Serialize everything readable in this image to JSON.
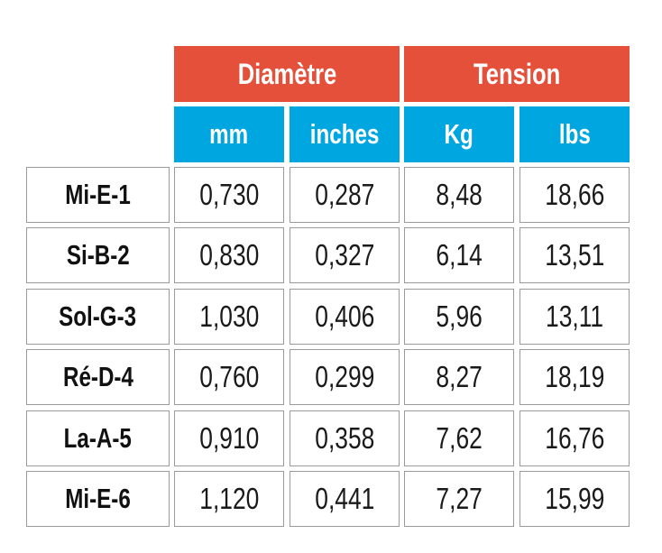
{
  "table": {
    "group_headers": [
      "Diamètre",
      "Tension"
    ],
    "sub_headers": [
      "mm",
      "inches",
      "Kg",
      "lbs"
    ],
    "rows": [
      {
        "label": "Mi-E-1",
        "values": [
          "0,730",
          "0,287",
          "8,48",
          "18,66"
        ]
      },
      {
        "label": "Si-B-2",
        "values": [
          "0,830",
          "0,327",
          "6,14",
          "13,51"
        ]
      },
      {
        "label": "Sol-G-3",
        "values": [
          "1,030",
          "0,406",
          "5,96",
          "13,11"
        ]
      },
      {
        "label": "Ré-D-4",
        "values": [
          "0,760",
          "0,299",
          "8,27",
          "18,19"
        ]
      },
      {
        "label": "La-A-5",
        "values": [
          "0,910",
          "0,358",
          "7,62",
          "16,76"
        ]
      },
      {
        "label": "Mi-E-6",
        "values": [
          "1,120",
          "0,441",
          "7,27",
          "15,99"
        ]
      }
    ]
  },
  "colors": {
    "group_header_bg": "#e5503a",
    "sub_header_bg": "#00a6e0",
    "cell_border": "#9a9a9a"
  }
}
